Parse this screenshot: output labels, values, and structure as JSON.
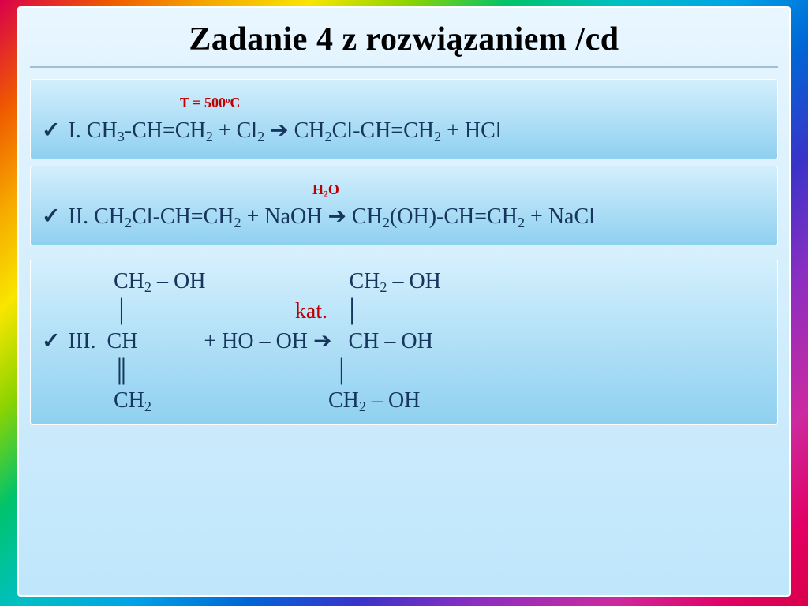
{
  "slide": {
    "title": "Zadanie 4 z rozwiązaniem /cd",
    "title_fontsize": 42,
    "title_color": "#000000",
    "body_text_color": "#17365d",
    "condition_color": "#c00000",
    "background_gradient": [
      "#e8f6ff",
      "#bfe6fb"
    ],
    "panel_gradient": [
      "#d3effd",
      "#8fd0f0"
    ],
    "panel_border_color": "#ffffff",
    "rainbow_colors": [
      "#d9004a",
      "#ef5a00",
      "#f6a800",
      "#f8e600",
      "#8dd400",
      "#00c36b",
      "#00c0c4",
      "#00a3e6",
      "#0066d6",
      "#3a33c9",
      "#8a2ec2",
      "#cc2aa0",
      "#e30063"
    ],
    "checkmark_glyph": "✓",
    "arrow_glyph": "➔",
    "panels": [
      {
        "condition_prefix_spaces": "                         ",
        "condition_html": "T = 500<sup>o</sup>C",
        "roman": "I.",
        "equation_html": "CH<sub>3</sub>-CH=CH<sub>2</sub> + Cl<sub>2</sub> ➔ CH<sub>2</sub>Cl-CH=CH<sub>2</sub> + HCl"
      },
      {
        "condition_prefix_spaces": "                                                 ",
        "condition_html": "H<sub>2</sub>O",
        "roman": "II.",
        "equation_html": "CH<sub>2</sub>Cl-CH=CH<sub>2</sub> + NaOH ➔ CH<sub>2</sub>(OH)-CH=CH<sub>2</sub> + NaCl"
      },
      {
        "roman": "III.",
        "line1_html": "             CH<sub>2</sub> – OH                          CH<sub>2</sub> – OH",
        "line2_html": "             │                              <span class=\"red\">kat.</span>   │",
        "line3_html": "III.  CH            + HO – OH ➔   CH – OH",
        "line4_html": "             ║                                     │",
        "line5_html": "             CH<sub>2</sub>                                CH<sub>2</sub> – OH"
      }
    ]
  }
}
